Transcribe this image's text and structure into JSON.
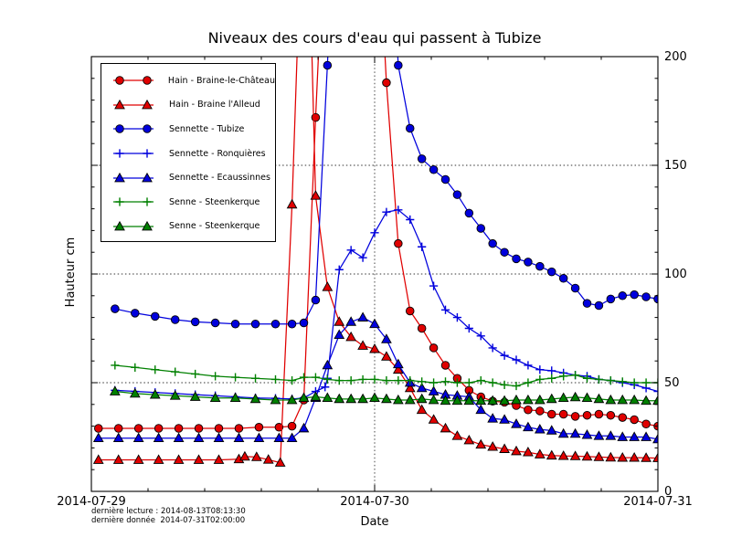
{
  "chart_data": {
    "type": "line",
    "title": "Niveaux des cours d'eau qui passent à Tubize",
    "xlabel": "Date",
    "ylabel": "Hauteur cm",
    "xlim_hours": [
      0,
      48
    ],
    "ylim": [
      0,
      200
    ],
    "x_tick_hours": [
      0,
      24,
      48
    ],
    "x_tick_labels": [
      "2014-07-29",
      "2014-07-30",
      "2014-07-31"
    ],
    "y_tick_values": [
      0,
      50,
      100,
      150,
      200
    ],
    "y_tick_labels": [
      "0",
      "50",
      "100",
      "150",
      "200"
    ],
    "grid": {
      "horizontal_at": [
        50,
        100,
        150
      ],
      "vertical_at_hours": [
        24
      ],
      "style": "dotted"
    },
    "legend_position": "upper-left",
    "annotations": [
      "dernière lecture : 2014-08-13T08:13:30",
      "dernière donnée  2014-07-31T02:00:00"
    ],
    "series": [
      {
        "name": "Hain - Braine-le-Château",
        "color": "#e00000",
        "marker": "circle",
        "points": [
          [
            0.6,
            29
          ],
          [
            2.3,
            29
          ],
          [
            4,
            29
          ],
          [
            5.7,
            29
          ],
          [
            7.4,
            29
          ],
          [
            9.1,
            29
          ],
          [
            10.8,
            29
          ],
          [
            12.5,
            29
          ],
          [
            14.2,
            29.5
          ],
          [
            15.9,
            29.5
          ],
          [
            17,
            30
          ],
          [
            18,
            42
          ],
          [
            19,
            172
          ],
          [
            20,
            290
          ],
          [
            22,
            330
          ],
          [
            24,
            290
          ],
          [
            25,
            188
          ],
          [
            26,
            114
          ],
          [
            27,
            83
          ],
          [
            28,
            75
          ],
          [
            29,
            66
          ],
          [
            30,
            58
          ],
          [
            31,
            52
          ],
          [
            32,
            46.5
          ],
          [
            33,
            43.5
          ],
          [
            34,
            41.5
          ],
          [
            35,
            41
          ],
          [
            36,
            39.5
          ],
          [
            37,
            37.5
          ],
          [
            38,
            37
          ],
          [
            39,
            35.5
          ],
          [
            40,
            35.5
          ],
          [
            41,
            34.5
          ],
          [
            42,
            35
          ],
          [
            43,
            35.5
          ],
          [
            44,
            35
          ],
          [
            45,
            34
          ],
          [
            46,
            33
          ],
          [
            47,
            31
          ],
          [
            48,
            30
          ]
        ]
      },
      {
        "name": "Hain - Braine l'Alleud",
        "color": "#e00000",
        "marker": "triangle",
        "points": [
          [
            0.6,
            14.5
          ],
          [
            2.3,
            14.5
          ],
          [
            4,
            14.5
          ],
          [
            5.7,
            14.5
          ],
          [
            7.4,
            14.5
          ],
          [
            9.1,
            14.5
          ],
          [
            10.8,
            14.5
          ],
          [
            12.5,
            14.8
          ],
          [
            13,
            16
          ],
          [
            14,
            15.8
          ],
          [
            15,
            14.6
          ],
          [
            16,
            13.2
          ],
          [
            17,
            132
          ],
          [
            17.8,
            260
          ],
          [
            18.4,
            260
          ],
          [
            19,
            136
          ],
          [
            20,
            94
          ],
          [
            21,
            78
          ],
          [
            22,
            71
          ],
          [
            23,
            67
          ],
          [
            24,
            65.5
          ],
          [
            25,
            62
          ],
          [
            26,
            56
          ],
          [
            27,
            47.5
          ],
          [
            28,
            37.5
          ],
          [
            29,
            33
          ],
          [
            30,
            29
          ],
          [
            31,
            25.5
          ],
          [
            32,
            23.5
          ],
          [
            33,
            21.5
          ],
          [
            34,
            20.5
          ],
          [
            35,
            19.5
          ],
          [
            36,
            18.5
          ],
          [
            37,
            18
          ],
          [
            38,
            17
          ],
          [
            39,
            16.5
          ],
          [
            40,
            16.3
          ],
          [
            41,
            16.2
          ],
          [
            42,
            16
          ],
          [
            43,
            15.8
          ],
          [
            44,
            15.6
          ],
          [
            45,
            15.5
          ],
          [
            46,
            15.5
          ],
          [
            47,
            15.4
          ],
          [
            48,
            15.3
          ]
        ]
      },
      {
        "name": "Sennette - Tubize",
        "color": "#0000dd",
        "marker": "circle",
        "points": [
          [
            2,
            84
          ],
          [
            3.7,
            82
          ],
          [
            5.4,
            80.5
          ],
          [
            7.1,
            79
          ],
          [
            8.8,
            78
          ],
          [
            10.5,
            77.5
          ],
          [
            12.2,
            77
          ],
          [
            13.9,
            77
          ],
          [
            15.6,
            77
          ],
          [
            17,
            77
          ],
          [
            18,
            77.5
          ],
          [
            19,
            88
          ],
          [
            20,
            196
          ],
          [
            20.8,
            290
          ],
          [
            25.2,
            290
          ],
          [
            26,
            196
          ],
          [
            27,
            167
          ],
          [
            28,
            153
          ],
          [
            29,
            148
          ],
          [
            30,
            143.5
          ],
          [
            31,
            136.5
          ],
          [
            32,
            128
          ],
          [
            33,
            121
          ],
          [
            34,
            114
          ],
          [
            35,
            110
          ],
          [
            36,
            107
          ],
          [
            37,
            105.5
          ],
          [
            38,
            103.5
          ],
          [
            39,
            101
          ],
          [
            40,
            98
          ],
          [
            41,
            93.5
          ],
          [
            42,
            86.5
          ],
          [
            43,
            85.5
          ],
          [
            44,
            88.5
          ],
          [
            45,
            90
          ],
          [
            46,
            90.5
          ],
          [
            47,
            89.5
          ],
          [
            48,
            88.5
          ]
        ]
      },
      {
        "name": "Sennette - Ronquières",
        "color": "#0000dd",
        "marker": "plus",
        "points": [
          [
            2,
            46.5
          ],
          [
            3.7,
            46
          ],
          [
            5.4,
            45.5
          ],
          [
            7.1,
            45
          ],
          [
            8.8,
            44.5
          ],
          [
            10.5,
            44
          ],
          [
            12.2,
            43.5
          ],
          [
            13.9,
            43
          ],
          [
            15.6,
            42.8
          ],
          [
            17,
            42.5
          ],
          [
            18,
            43
          ],
          [
            19,
            46
          ],
          [
            19.8,
            48
          ],
          [
            20,
            52
          ],
          [
            21,
            102
          ],
          [
            22,
            111
          ],
          [
            23,
            107.5
          ],
          [
            24,
            119
          ],
          [
            25,
            128.5
          ],
          [
            26,
            129.5
          ],
          [
            27,
            125
          ],
          [
            28,
            112.5
          ],
          [
            29,
            94.5
          ],
          [
            30,
            83.5
          ],
          [
            31,
            80
          ],
          [
            32,
            75
          ],
          [
            33,
            71.5
          ],
          [
            34,
            66
          ],
          [
            35,
            62.5
          ],
          [
            36,
            60.5
          ],
          [
            37,
            58
          ],
          [
            38,
            56
          ],
          [
            39,
            55.5
          ],
          [
            40,
            54.5
          ],
          [
            41,
            53.5
          ],
          [
            42,
            53
          ],
          [
            43,
            51.5
          ],
          [
            44,
            51
          ],
          [
            45,
            50
          ],
          [
            46,
            49
          ],
          [
            47,
            47.5
          ],
          [
            48,
            46
          ]
        ]
      },
      {
        "name": "Sennette - Ecaussinnes",
        "color": "#0000dd",
        "marker": "triangle",
        "points": [
          [
            0.6,
            24.5
          ],
          [
            2.3,
            24.5
          ],
          [
            4,
            24.5
          ],
          [
            5.7,
            24.5
          ],
          [
            7.4,
            24.5
          ],
          [
            9.1,
            24.5
          ],
          [
            10.8,
            24.5
          ],
          [
            12.5,
            24.5
          ],
          [
            14.2,
            24.5
          ],
          [
            15.9,
            24.5
          ],
          [
            17,
            24.5
          ],
          [
            18,
            29
          ],
          [
            19,
            43
          ],
          [
            20,
            58
          ],
          [
            21,
            72
          ],
          [
            22,
            78
          ],
          [
            23,
            80
          ],
          [
            24,
            77
          ],
          [
            25,
            70
          ],
          [
            26,
            58.5
          ],
          [
            27,
            50
          ],
          [
            28,
            47.5
          ],
          [
            29,
            46
          ],
          [
            30,
            44.5
          ],
          [
            31,
            44
          ],
          [
            32,
            43.5
          ],
          [
            33,
            37.5
          ],
          [
            34,
            33.5
          ],
          [
            35,
            33
          ],
          [
            36,
            31
          ],
          [
            37,
            29.5
          ],
          [
            38,
            28.5
          ],
          [
            39,
            28
          ],
          [
            40,
            26.5
          ],
          [
            41,
            26.5
          ],
          [
            42,
            26
          ],
          [
            43,
            25.5
          ],
          [
            44,
            25.5
          ],
          [
            45,
            25
          ],
          [
            46,
            25
          ],
          [
            47,
            25
          ],
          [
            48,
            24
          ]
        ]
      },
      {
        "name": "Senne - Steenkerque",
        "color": "#008000",
        "marker": "plus",
        "points": [
          [
            2,
            58
          ],
          [
            3.7,
            57
          ],
          [
            5.4,
            56
          ],
          [
            7.1,
            55
          ],
          [
            8.8,
            54
          ],
          [
            10.5,
            53
          ],
          [
            12.2,
            52.5
          ],
          [
            13.9,
            52
          ],
          [
            15.6,
            51.5
          ],
          [
            17,
            51
          ],
          [
            18,
            52.5
          ],
          [
            19,
            52.5
          ],
          [
            20,
            51.5
          ],
          [
            21,
            51
          ],
          [
            22,
            51
          ],
          [
            23,
            51.5
          ],
          [
            24,
            51.5
          ],
          [
            25,
            51
          ],
          [
            26,
            51
          ],
          [
            27,
            51
          ],
          [
            28,
            50.5
          ],
          [
            29,
            50
          ],
          [
            30,
            50.5
          ],
          [
            31,
            50
          ],
          [
            32,
            50
          ],
          [
            33,
            51
          ],
          [
            34,
            50
          ],
          [
            35,
            49
          ],
          [
            36,
            48.5
          ],
          [
            37,
            50
          ],
          [
            38,
            51.5
          ],
          [
            39,
            52
          ],
          [
            40,
            53
          ],
          [
            41,
            53.5
          ],
          [
            42,
            52
          ],
          [
            43,
            51.5
          ],
          [
            44,
            51
          ],
          [
            45,
            50.5
          ],
          [
            46,
            50
          ],
          [
            47,
            50
          ],
          [
            48,
            50
          ]
        ]
      },
      {
        "name": "Senne - Steenkerque",
        "color": "#008000",
        "marker": "triangle",
        "points": [
          [
            2,
            46
          ],
          [
            3.7,
            45
          ],
          [
            5.4,
            44.5
          ],
          [
            7.1,
            44
          ],
          [
            8.8,
            43.5
          ],
          [
            10.5,
            43
          ],
          [
            12.2,
            43
          ],
          [
            13.9,
            42.5
          ],
          [
            15.6,
            42
          ],
          [
            17,
            42
          ],
          [
            18,
            43
          ],
          [
            19,
            43.5
          ],
          [
            20,
            43
          ],
          [
            21,
            42.5
          ],
          [
            22,
            42.5
          ],
          [
            23,
            42.5
          ],
          [
            24,
            43
          ],
          [
            25,
            42.5
          ],
          [
            26,
            42
          ],
          [
            27,
            42
          ],
          [
            28,
            42.5
          ],
          [
            29,
            42
          ],
          [
            30,
            41.7
          ],
          [
            31,
            41.7
          ],
          [
            32,
            41.7
          ],
          [
            33,
            41.7
          ],
          [
            34,
            41.7
          ],
          [
            35,
            41.7
          ],
          [
            36,
            42
          ],
          [
            37,
            42
          ],
          [
            38,
            42
          ],
          [
            39,
            42.5
          ],
          [
            40,
            43
          ],
          [
            41,
            43.3
          ],
          [
            42,
            43
          ],
          [
            43,
            42.5
          ],
          [
            44,
            42
          ],
          [
            45,
            42
          ],
          [
            46,
            42
          ],
          [
            47,
            41.7
          ],
          [
            48,
            41.7
          ]
        ]
      }
    ]
  }
}
